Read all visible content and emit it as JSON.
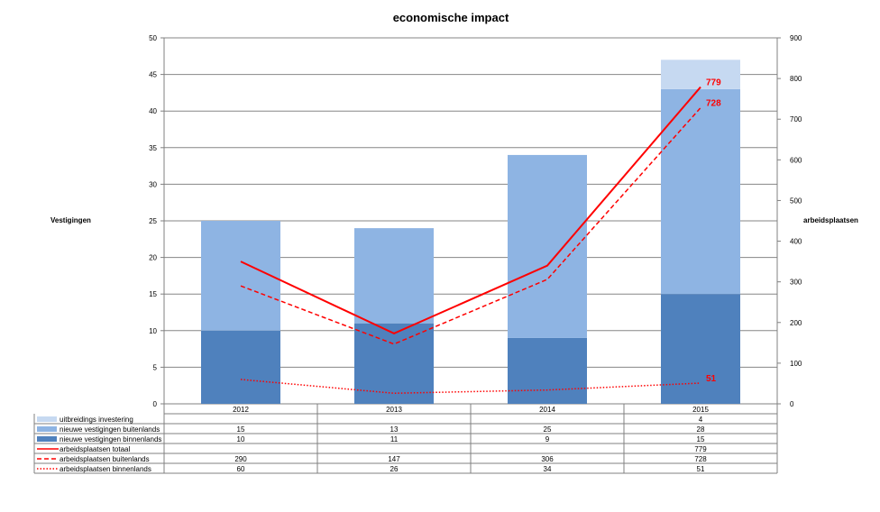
{
  "chart_data": {
    "type": "bar",
    "title": "economische impact",
    "ylabel_left": "Vestigingen",
    "ylabel_right": "arbeidsplaatsen",
    "categories": [
      "2012",
      "2013",
      "2014",
      "2015"
    ],
    "y_left": {
      "min": 0,
      "max": 50,
      "ticks": [
        "0",
        "5",
        "10",
        "15",
        "20",
        "25",
        "30",
        "35",
        "40",
        "45",
        "50"
      ]
    },
    "y_right": {
      "min": 0,
      "max": 900,
      "ticks": [
        "0",
        "100",
        "200",
        "300",
        "400",
        "500",
        "600",
        "700",
        "800",
        "900"
      ]
    },
    "grid": true,
    "legend": "data table below chart",
    "series": [
      {
        "name": "nieuwe vestigingen binnenlands",
        "kind": "bar",
        "axis": "left",
        "color": "#4F81BD",
        "values": [
          10,
          11,
          9,
          15
        ],
        "table": [
          "10",
          "11",
          "9",
          "15"
        ]
      },
      {
        "name": "nieuwe vestigingen buitenlands",
        "kind": "bar",
        "axis": "left",
        "color": "#8EB4E3",
        "values": [
          15,
          13,
          25,
          28
        ],
        "table": [
          "15",
          "13",
          "25",
          "28"
        ]
      },
      {
        "name": "uitbreidings investering",
        "kind": "bar",
        "axis": "left",
        "color": "#C6D9F1",
        "values": [
          0,
          0,
          0,
          4
        ],
        "table": [
          "",
          "",
          "",
          "4"
        ]
      },
      {
        "name": "arbeidsplaatsen totaal",
        "kind": "line",
        "axis": "right",
        "color": "#FF0000",
        "style": "solid",
        "values": [
          350,
          173,
          340,
          779
        ],
        "table": [
          "",
          "",
          "",
          "779"
        ]
      },
      {
        "name": "arbeidsplaatsen buitenlands",
        "kind": "line",
        "axis": "right",
        "color": "#FF0000",
        "style": "dashed",
        "values": [
          290,
          147,
          306,
          728
        ],
        "table": [
          "290",
          "147",
          "306",
          "728"
        ]
      },
      {
        "name": "arbeidsplaatsen binnenlands",
        "kind": "line",
        "axis": "right",
        "color": "#FF0000",
        "style": "dotted",
        "values": [
          60,
          26,
          34,
          51
        ],
        "table": [
          "60",
          "26",
          "34",
          "51"
        ]
      }
    ],
    "annotations": [
      {
        "series": "arbeidsplaatsen totaal",
        "category": "2015",
        "text": "779"
      },
      {
        "series": "arbeidsplaatsen buitenlands",
        "category": "2015",
        "text": "728"
      },
      {
        "series": "arbeidsplaatsen binnenlands",
        "category": "2015",
        "text": "51"
      }
    ],
    "table_order": [
      "uitbreidings investering",
      "nieuwe vestigingen buitenlands",
      "nieuwe vestigingen binnenlands",
      "arbeidsplaatsen totaal",
      "arbeidsplaatsen buitenlands",
      "arbeidsplaatsen binnenlands"
    ]
  }
}
